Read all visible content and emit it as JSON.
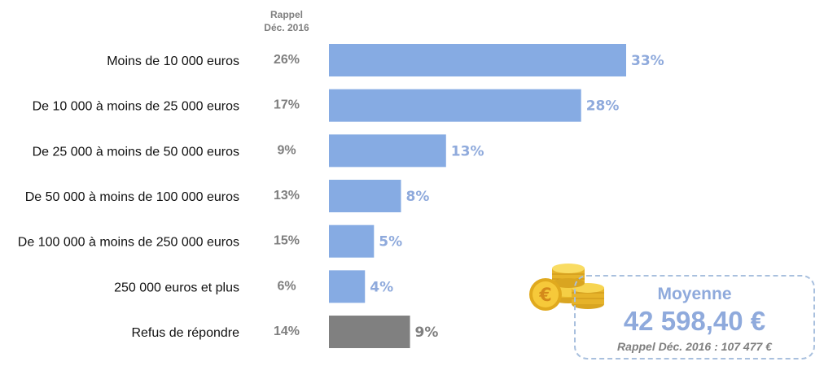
{
  "chart_data": {
    "type": "bar",
    "orientation": "horizontal",
    "rappel_header": [
      "Rappel",
      "Déc. 2016"
    ],
    "categories": [
      "Moins de 10 000 euros",
      "De 10 000 à moins de 25 000 euros",
      "De 25 000 à moins de 50 000 euros",
      "De 50 000 à moins de 100 000 euros",
      "De 100 000 à moins de 250 000 euros",
      "250 000 euros et plus",
      "Refus de répondre"
    ],
    "values": [
      33,
      28,
      13,
      8,
      5,
      4,
      9
    ],
    "value_labels": [
      "33%",
      "28%",
      "13%",
      "8%",
      "5%",
      "4%",
      "9%"
    ],
    "rappel_values": [
      26,
      17,
      9,
      13,
      15,
      6,
      14
    ],
    "rappel_labels": [
      "26%",
      "17%",
      "9%",
      "13%",
      "15%",
      "6%",
      "14%"
    ],
    "bar_colors": [
      "#86abe3",
      "#86abe3",
      "#86abe3",
      "#86abe3",
      "#86abe3",
      "#86abe3",
      "#808080"
    ],
    "label_colors": [
      "#8faadc",
      "#8faadc",
      "#8faadc",
      "#8faadc",
      "#8faadc",
      "#8faadc",
      "#7f7f7f"
    ],
    "xlim": [
      0,
      33
    ]
  },
  "summary": {
    "title": "Moyenne",
    "value": "42 598,40 €",
    "rappel": "Rappel Déc. 2016 : 107 477 €",
    "coin_symbol": "€",
    "coin_icon": "euro-coins-icon",
    "accent_color": "#8faadc"
  }
}
